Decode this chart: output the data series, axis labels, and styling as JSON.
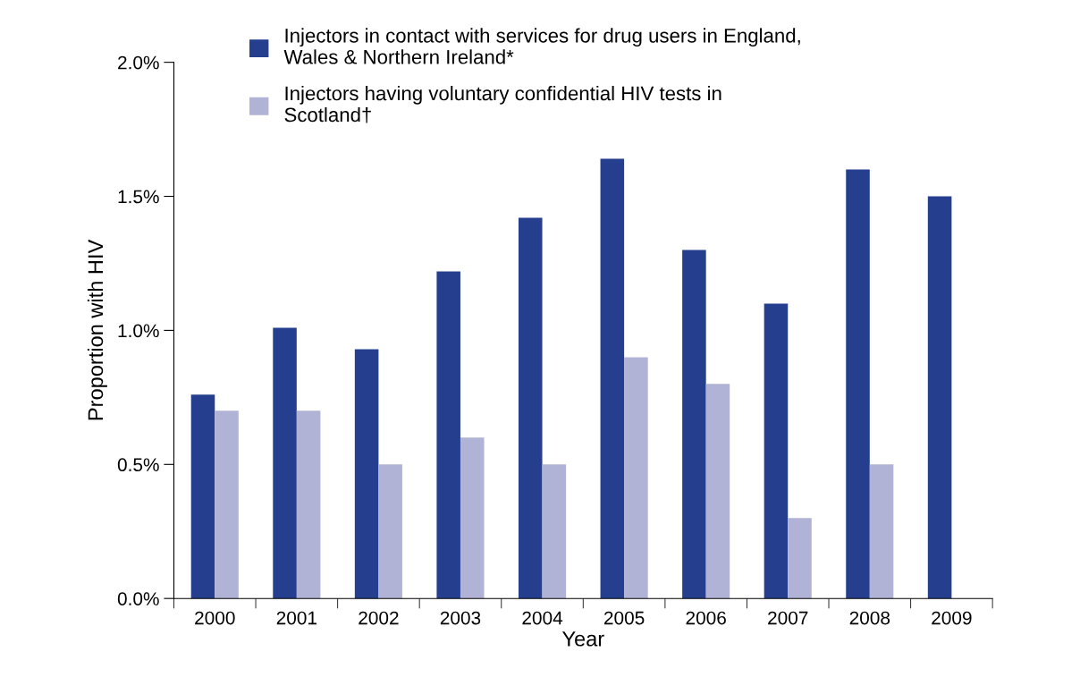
{
  "chart_data": {
    "type": "bar",
    "xlabel": "Year",
    "ylabel": "Proportion with HIV",
    "categories": [
      "2000",
      "2001",
      "2002",
      "2003",
      "2004",
      "2005",
      "2006",
      "2007",
      "2008",
      "2009"
    ],
    "series": [
      {
        "name": "Injectors in contact with services for drug users in England,\nWales & Northern Ireland*",
        "color": "#253f8e",
        "values": [
          0.76,
          1.01,
          0.93,
          1.22,
          1.42,
          1.64,
          1.3,
          1.1,
          1.6,
          1.5
        ]
      },
      {
        "name": "Injectors having voluntary confidential HIV tests in\nScotland†",
        "color": "#b1b3d6",
        "values": [
          0.7,
          0.7,
          0.5,
          0.6,
          0.5,
          0.9,
          0.8,
          0.3,
          0.5,
          null
        ]
      }
    ],
    "ylim": [
      0,
      2.0
    ],
    "yticks": [
      {
        "value": 0,
        "label": "0.0%"
      },
      {
        "value": 0.5,
        "label": "0.5%"
      },
      {
        "value": 1.0,
        "label": "1.0%"
      },
      {
        "value": 1.5,
        "label": "1.5%"
      },
      {
        "value": 2.0,
        "label": "2.0%"
      }
    ],
    "grid": false,
    "legend": "top"
  }
}
